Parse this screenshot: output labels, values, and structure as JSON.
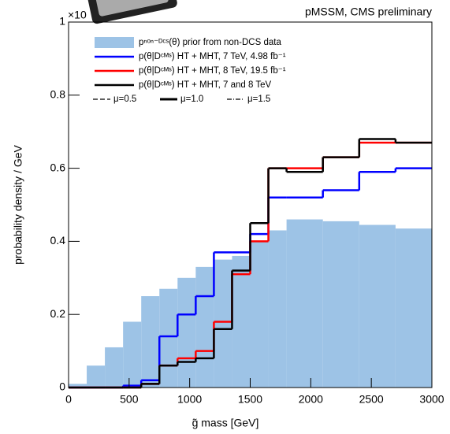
{
  "chart_data": {
    "type": "histogram",
    "title": "pMSSM, CMS preliminary",
    "multiplier": "×10",
    "x_label": "g̃ mass [GeV]",
    "y_label": "probability density / GeV",
    "bins": [
      0,
      150,
      300,
      450,
      600,
      750,
      900,
      1050,
      1200,
      1350,
      1500,
      1650,
      1800,
      2100,
      2400,
      2700,
      3000
    ],
    "series": [
      {
        "name": "pⁿᵒⁿ⁻ᴰᶜˢ(θ) prior from non-DCS data",
        "color": "#9dc3e6",
        "style": "fill",
        "values": [
          0.01,
          0.06,
          0.11,
          0.18,
          0.25,
          0.27,
          0.3,
          0.33,
          0.35,
          0.36,
          0.4,
          0.43,
          0.46,
          0.455,
          0.445,
          0.435
        ]
      },
      {
        "name": "p(θ|Dᶜᴹˢ) HT + MHT, 7 TeV, 4.98 fb⁻¹",
        "color": "#0000ff",
        "style": "line",
        "values": [
          0,
          0,
          0,
          0.005,
          0.02,
          0.14,
          0.2,
          0.25,
          0.37,
          0.37,
          0.42,
          0.52,
          0.52,
          0.54,
          0.59,
          0.6
        ]
      },
      {
        "name": "p(θ|Dᶜᴹˢ) HT + MHT, 8 TeV, 19.5 fb⁻¹",
        "color": "#ff0000",
        "style": "line",
        "values": [
          0,
          0,
          0,
          0,
          0.01,
          0.06,
          0.08,
          0.1,
          0.18,
          0.31,
          0.4,
          0.6,
          0.6,
          0.63,
          0.67,
          0.67
        ]
      },
      {
        "name": "p(θ|Dᶜᴹˢ) HT + MHT, 7 and 8 TeV",
        "color": "#000000",
        "style": "line",
        "values": [
          0,
          0,
          0,
          0,
          0.01,
          0.06,
          0.07,
          0.08,
          0.16,
          0.32,
          0.45,
          0.6,
          0.59,
          0.63,
          0.68,
          0.67
        ]
      }
    ],
    "line_styles": [
      {
        "name": "μ=0.5",
        "dash": "dashed"
      },
      {
        "name": "μ=1.0",
        "dash": "solid"
      },
      {
        "name": "μ=1.5",
        "dash": "dashdot"
      }
    ],
    "xlim": [
      0,
      3000
    ],
    "xticks": [
      0,
      500,
      1000,
      1500,
      2000,
      2500,
      3000
    ],
    "ylim": [
      0,
      1
    ],
    "yticks": [
      0,
      0.2,
      0.4,
      0.6,
      0.8,
      1
    ]
  }
}
